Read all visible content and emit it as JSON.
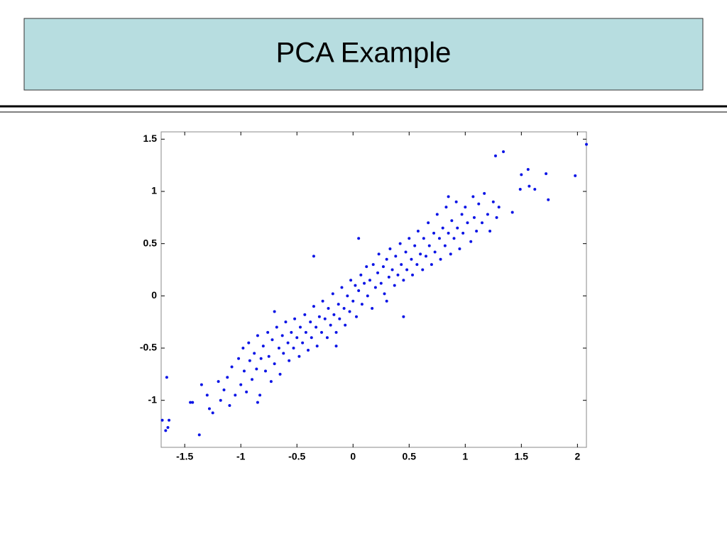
{
  "chart_data": {
    "type": "scatter",
    "title": "PCA Example",
    "color": "#0a14e6",
    "xlim": [
      -1.71,
      2.08
    ],
    "ylim": [
      -1.45,
      1.57
    ],
    "xticks": [
      -1.5,
      -1,
      -0.5,
      0,
      0.5,
      1,
      1.5,
      2
    ],
    "yticks": [
      -1,
      -0.5,
      0,
      0.5,
      1,
      1.5
    ],
    "x": [
      -1.7,
      -1.67,
      -1.65,
      -1.64,
      -1.66,
      -1.45,
      -1.43,
      -1.37,
      1.27,
      1.34,
      1.98,
      2.08,
      1.56,
      1.72,
      1.5,
      1.74,
      1.62,
      1.57,
      1.49,
      1.42,
      -1.35,
      -1.3,
      -1.28,
      -1.25,
      -1.2,
      -1.18,
      -1.15,
      -1.12,
      -1.1,
      -1.08,
      -1.05,
      -1.02,
      -1.0,
      -0.98,
      -0.97,
      -0.95,
      -0.93,
      -0.92,
      -0.9,
      -0.88,
      -0.86,
      -0.85,
      -0.83,
      -0.82,
      -0.8,
      -0.78,
      -0.76,
      -0.75,
      -0.73,
      -0.72,
      -0.7,
      -0.68,
      -0.66,
      -0.65,
      -0.63,
      -0.62,
      -0.6,
      -0.58,
      -0.57,
      -0.55,
      -0.53,
      -0.52,
      -0.5,
      -0.48,
      -0.47,
      -0.45,
      -0.43,
      -0.42,
      -0.4,
      -0.38,
      -0.37,
      -0.35,
      -0.33,
      -0.32,
      -0.3,
      -0.28,
      -0.27,
      -0.25,
      -0.23,
      -0.22,
      -0.2,
      -0.18,
      -0.17,
      -0.15,
      -0.13,
      -0.12,
      -0.1,
      -0.08,
      -0.07,
      -0.05,
      -0.03,
      -0.02,
      0.0,
      0.02,
      0.03,
      0.05,
      0.07,
      0.08,
      0.1,
      0.12,
      0.13,
      0.15,
      0.17,
      0.18,
      0.2,
      0.22,
      0.23,
      0.25,
      0.27,
      0.28,
      0.3,
      0.32,
      0.33,
      0.35,
      0.37,
      0.38,
      0.4,
      0.42,
      0.43,
      0.45,
      0.47,
      0.48,
      0.5,
      0.52,
      0.53,
      0.55,
      0.57,
      0.58,
      0.6,
      0.62,
      0.63,
      0.65,
      0.67,
      0.68,
      0.7,
      0.72,
      0.73,
      0.75,
      0.77,
      0.78,
      0.8,
      0.82,
      0.83,
      0.85,
      0.87,
      0.88,
      0.9,
      0.92,
      0.93,
      0.95,
      0.97,
      0.98,
      1.0,
      1.02,
      1.05,
      1.07,
      1.08,
      1.1,
      1.12,
      1.15,
      1.17,
      1.2,
      1.22,
      1.25,
      1.28,
      1.3,
      -0.15,
      0.45,
      0.3,
      -0.35,
      0.05,
      -0.7,
      -0.85,
      0.85
    ],
    "y": [
      -1.19,
      -1.29,
      -1.26,
      -1.19,
      -0.78,
      -1.02,
      -1.02,
      -1.33,
      1.34,
      1.38,
      1.15,
      1.45,
      1.21,
      1.17,
      1.16,
      0.92,
      1.02,
      1.05,
      1.02,
      0.8,
      -0.85,
      -0.95,
      -1.08,
      -1.12,
      -0.82,
      -1.0,
      -0.9,
      -0.78,
      -1.05,
      -0.68,
      -0.95,
      -0.6,
      -0.85,
      -0.5,
      -0.72,
      -0.92,
      -0.45,
      -0.62,
      -0.8,
      -0.55,
      -0.7,
      -0.38,
      -0.95,
      -0.6,
      -0.48,
      -0.72,
      -0.35,
      -0.58,
      -0.82,
      -0.42,
      -0.65,
      -0.3,
      -0.5,
      -0.75,
      -0.38,
      -0.55,
      -0.25,
      -0.45,
      -0.62,
      -0.35,
      -0.5,
      -0.22,
      -0.4,
      -0.58,
      -0.3,
      -0.45,
      -0.18,
      -0.35,
      -0.52,
      -0.25,
      -0.4,
      -0.1,
      -0.3,
      -0.48,
      -0.2,
      -0.35,
      -0.05,
      -0.22,
      -0.4,
      -0.12,
      -0.28,
      0.02,
      -0.18,
      -0.35,
      -0.08,
      -0.22,
      0.08,
      -0.12,
      -0.28,
      0.0,
      -0.15,
      0.15,
      -0.05,
      0.1,
      -0.2,
      0.05,
      0.2,
      -0.08,
      0.12,
      0.28,
      0.0,
      0.15,
      -0.12,
      0.3,
      0.08,
      0.22,
      0.4,
      0.12,
      0.28,
      0.02,
      0.35,
      0.18,
      0.45,
      0.25,
      0.1,
      0.38,
      0.2,
      0.5,
      0.3,
      0.15,
      0.42,
      0.25,
      0.55,
      0.35,
      0.2,
      0.48,
      0.3,
      0.62,
      0.4,
      0.25,
      0.55,
      0.38,
      0.7,
      0.48,
      0.3,
      0.6,
      0.42,
      0.78,
      0.55,
      0.35,
      0.65,
      0.48,
      0.85,
      0.6,
      0.4,
      0.72,
      0.55,
      0.9,
      0.65,
      0.45,
      0.78,
      0.6,
      0.85,
      0.7,
      0.52,
      0.95,
      0.75,
      0.62,
      0.88,
      0.7,
      0.98,
      0.78,
      0.62,
      0.9,
      0.75,
      0.85,
      -0.48,
      -0.2,
      -0.05,
      0.38,
      0.55,
      -0.15,
      -1.02,
      0.95
    ]
  }
}
